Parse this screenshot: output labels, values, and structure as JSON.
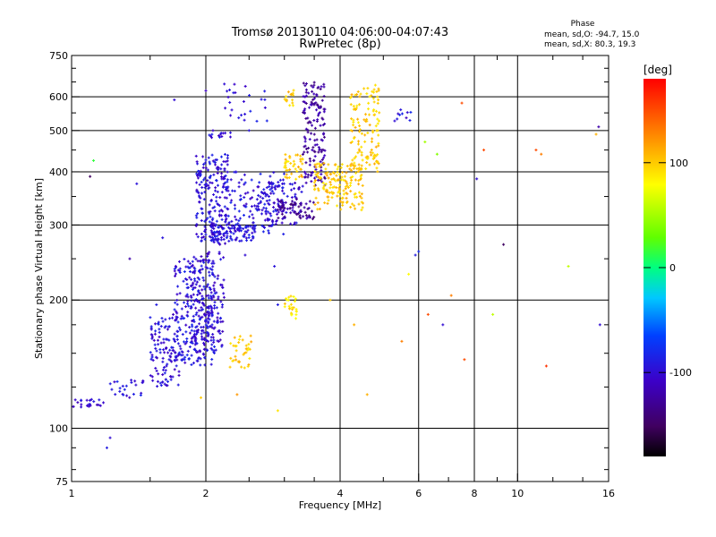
{
  "chart_data": {
    "type": "scatter",
    "title": "Tromsø 20130110 04:06:00-04:07:43",
    "subtitle": "RwPretec (8p)",
    "xlabel": "Frequency [MHz]",
    "ylabel": "Stationary phase Virtual Height [km]",
    "x_scale": "log",
    "y_scale": "log",
    "xlim": [
      1,
      16
    ],
    "ylim": [
      75,
      750
    ],
    "x_ticks": [
      1,
      2,
      4,
      6,
      8,
      10,
      16
    ],
    "x_tick_labels": [
      "1",
      "2",
      "4",
      "6",
      "8",
      "10",
      "16"
    ],
    "y_ticks": [
      75,
      100,
      200,
      300,
      400,
      500,
      600,
      750
    ],
    "y_tick_labels": [
      "75",
      "100",
      "200",
      "300",
      "400",
      "500",
      "600",
      "750"
    ],
    "grid": true,
    "stats": {
      "heading": "Phase",
      "line1": "mean, sd,O: -94.7, 15.0",
      "line2": "mean, sd,X:  80.3, 19.3"
    },
    "colorbar": {
      "label": "[deg]",
      "range": [
        -180,
        180
      ],
      "tick_values": [
        100,
        0,
        -100
      ],
      "tick_labels": [
        "100",
        "0",
        "-100"
      ]
    },
    "clusters": [
      {
        "f": [
          1.0,
          1.18
        ],
        "h": [
          112,
          117
        ],
        "n": 22,
        "phase": -100
      },
      {
        "f": [
          1.22,
          1.45
        ],
        "h": [
          118,
          132
        ],
        "n": 24,
        "phase": -95
      },
      {
        "f": [
          1.5,
          1.75
        ],
        "h": [
          125,
          185
        ],
        "n": 120,
        "phase": -98
      },
      {
        "f": [
          1.7,
          2.1
        ],
        "h": [
          140,
          250
        ],
        "n": 260,
        "phase": -95
      },
      {
        "f": [
          1.85,
          2.2
        ],
        "h": [
          150,
          260
        ],
        "n": 140,
        "phase": -102
      },
      {
        "f": [
          1.9,
          2.25
        ],
        "h": [
          270,
          440
        ],
        "n": 200,
        "phase": -97
      },
      {
        "f": [
          2.05,
          2.6
        ],
        "h": [
          275,
          300
        ],
        "n": 90,
        "phase": -95
      },
      {
        "f": [
          2.2,
          3.0
        ],
        "h": [
          285,
          400
        ],
        "n": 130,
        "phase": -95
      },
      {
        "f": [
          2.6,
          3.3
        ],
        "h": [
          300,
          380
        ],
        "n": 90,
        "phase": -100
      },
      {
        "f": [
          2.9,
          3.5
        ],
        "h": [
          310,
          345
        ],
        "n": 60,
        "phase": -130
      },
      {
        "f": [
          3.3,
          3.7
        ],
        "h": [
          370,
          650
        ],
        "n": 150,
        "phase": -125
      },
      {
        "f": [
          3.5,
          4.5
        ],
        "h": [
          325,
          420
        ],
        "n": 160,
        "phase": 100
      },
      {
        "f": [
          4.2,
          4.9
        ],
        "h": [
          400,
          640
        ],
        "n": 130,
        "phase": 100
      },
      {
        "f": [
          3.0,
          3.3
        ],
        "h": [
          380,
          440
        ],
        "n": 40,
        "phase": 100
      },
      {
        "f": [
          2.25,
          2.55
        ],
        "h": [
          138,
          165
        ],
        "n": 35,
        "phase": 100
      },
      {
        "f": [
          3.0,
          3.2
        ],
        "h": [
          180,
          205
        ],
        "n": 25,
        "phase": 90
      },
      {
        "f": [
          3.0,
          3.15
        ],
        "h": [
          570,
          625
        ],
        "n": 15,
        "phase": 100
      },
      {
        "f": [
          2.2,
          2.85
        ],
        "h": [
          520,
          650
        ],
        "n": 25,
        "phase": -95
      },
      {
        "f": [
          2.0,
          2.3
        ],
        "h": [
          480,
          500
        ],
        "n": 14,
        "phase": -95
      },
      {
        "f": [
          5.3,
          5.8
        ],
        "h": [
          520,
          560
        ],
        "n": 10,
        "phase": -95
      }
    ],
    "scattered_points": [
      {
        "f": 1.1,
        "h": 390,
        "phase": -150
      },
      {
        "f": 1.12,
        "h": 425,
        "phase": 15
      },
      {
        "f": 1.35,
        "h": 250,
        "phase": -120
      },
      {
        "f": 1.7,
        "h": 590,
        "phase": -100
      },
      {
        "f": 2.0,
        "h": 620,
        "phase": -110
      },
      {
        "f": 2.5,
        "h": 500,
        "phase": -95
      },
      {
        "f": 3.8,
        "h": 200,
        "phase": 100
      },
      {
        "f": 4.3,
        "h": 175,
        "phase": 110
      },
      {
        "f": 4.6,
        "h": 120,
        "phase": 110
      },
      {
        "f": 5.5,
        "h": 160,
        "phase": 130
      },
      {
        "f": 5.7,
        "h": 230,
        "phase": 80
      },
      {
        "f": 5.9,
        "h": 255,
        "phase": -90
      },
      {
        "f": 6.0,
        "h": 260,
        "phase": -80
      },
      {
        "f": 6.2,
        "h": 470,
        "phase": 50
      },
      {
        "f": 6.3,
        "h": 185,
        "phase": 150
      },
      {
        "f": 6.6,
        "h": 440,
        "phase": 40
      },
      {
        "f": 6.8,
        "h": 175,
        "phase": -100
      },
      {
        "f": 7.1,
        "h": 205,
        "phase": 130
      },
      {
        "f": 7.5,
        "h": 580,
        "phase": 150
      },
      {
        "f": 7.6,
        "h": 145,
        "phase": 150
      },
      {
        "f": 8.1,
        "h": 385,
        "phase": -100
      },
      {
        "f": 8.4,
        "h": 450,
        "phase": 150
      },
      {
        "f": 8.8,
        "h": 185,
        "phase": 60
      },
      {
        "f": 9.3,
        "h": 270,
        "phase": -150
      },
      {
        "f": 11.0,
        "h": 450,
        "phase": 150
      },
      {
        "f": 11.3,
        "h": 440,
        "phase": 130
      },
      {
        "f": 11.6,
        "h": 140,
        "phase": 160
      },
      {
        "f": 13.0,
        "h": 240,
        "phase": 60
      },
      {
        "f": 15.2,
        "h": 510,
        "phase": -120
      },
      {
        "f": 15.3,
        "h": 175,
        "phase": -100
      },
      {
        "f": 15.0,
        "h": 490,
        "phase": 110
      },
      {
        "f": 1.22,
        "h": 95,
        "phase": -100
      },
      {
        "f": 1.2,
        "h": 90,
        "phase": -90
      },
      {
        "f": 1.55,
        "h": 195,
        "phase": -90
      },
      {
        "f": 2.9,
        "h": 110,
        "phase": 90
      },
      {
        "f": 2.85,
        "h": 240,
        "phase": -95
      },
      {
        "f": 2.9,
        "h": 195,
        "phase": -90
      },
      {
        "f": 1.4,
        "h": 375,
        "phase": -95
      },
      {
        "f": 1.6,
        "h": 280,
        "phase": -95
      },
      {
        "f": 2.45,
        "h": 255,
        "phase": -100
      },
      {
        "f": 2.35,
        "h": 120,
        "phase": 120
      },
      {
        "f": 1.95,
        "h": 118,
        "phase": 100
      }
    ]
  }
}
